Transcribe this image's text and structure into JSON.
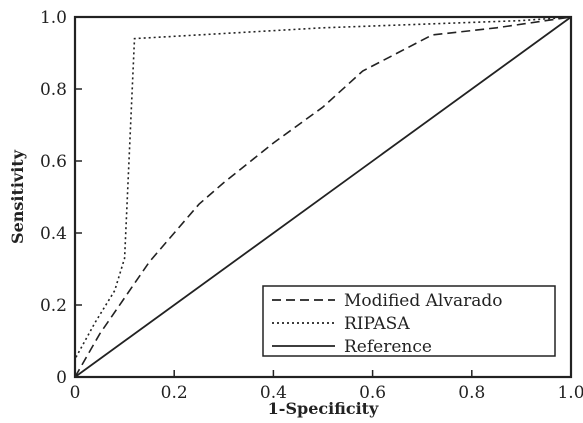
{
  "chart_data": {
    "type": "line",
    "xlabel": "1-Specificity",
    "ylabel": "Sensitivity",
    "xlim": [
      0,
      1
    ],
    "ylim": [
      0,
      1
    ],
    "x_ticks": [
      "0",
      "0.2",
      "0.4",
      "0.6",
      "0.8",
      "1.0"
    ],
    "y_ticks": [
      "0",
      "0.2",
      "0.4",
      "0.6",
      "0.8",
      "1.0"
    ],
    "grid": false,
    "legend_position": "bottom-right",
    "series": [
      {
        "name": "Modified Alvarado",
        "dash": "dashed",
        "color": "#222222",
        "points": [
          [
            0,
            0
          ],
          [
            0.05,
            0.12
          ],
          [
            0.1,
            0.22
          ],
          [
            0.15,
            0.32
          ],
          [
            0.2,
            0.4
          ],
          [
            0.25,
            0.48
          ],
          [
            0.3,
            0.54
          ],
          [
            0.4,
            0.65
          ],
          [
            0.5,
            0.75
          ],
          [
            0.58,
            0.85
          ],
          [
            0.65,
            0.9
          ],
          [
            0.72,
            0.95
          ],
          [
            0.85,
            0.97
          ],
          [
            1,
            1
          ]
        ]
      },
      {
        "name": "RIPASA",
        "dash": "dotted",
        "color": "#222222",
        "points": [
          [
            0,
            0
          ],
          [
            0.0,
            0.05
          ],
          [
            0.04,
            0.15
          ],
          [
            0.08,
            0.24
          ],
          [
            0.1,
            0.33
          ],
          [
            0.12,
            0.94
          ],
          [
            0.5,
            0.97
          ],
          [
            0.9,
            0.99
          ],
          [
            1,
            1
          ]
        ]
      },
      {
        "name": "Reference",
        "dash": "solid",
        "color": "#222222",
        "points": [
          [
            0,
            0
          ],
          [
            1,
            1
          ]
        ]
      }
    ]
  }
}
